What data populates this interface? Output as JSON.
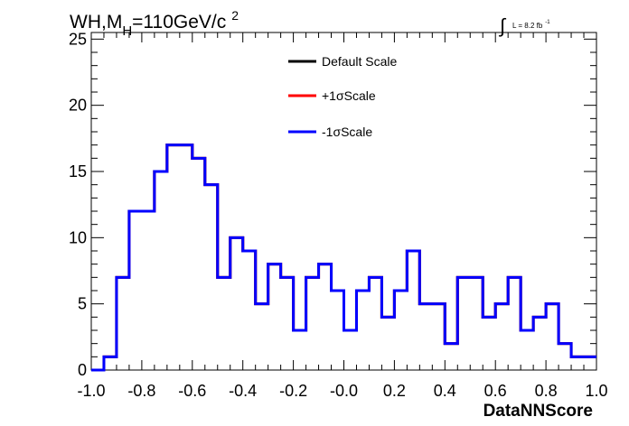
{
  "chart_data": {
    "type": "line",
    "drawstyle": "step",
    "title": {
      "prefix": "WH,M",
      "subscript": "H",
      "main": "=110GeV/c",
      "superscript": "2"
    },
    "lumi": {
      "integral": "∫",
      "text": "L = 8.2 fb",
      "superscript": "-1"
    },
    "xlabel": "DataNNScore",
    "ylabel": "",
    "xlim": [
      -1.0,
      1.0
    ],
    "ylim": [
      0,
      25.5
    ],
    "x_ticks": [
      "-1.0",
      "-0.8",
      "-0.6",
      "-0.4",
      "-0.2",
      "-0.0",
      "0.2",
      "0.4",
      "0.6",
      "0.8",
      "1.0"
    ],
    "y_ticks": [
      "0",
      "5",
      "10",
      "15",
      "20",
      "25"
    ],
    "grid": false,
    "legend_position": "top-center",
    "bin_edges_start": -1.0,
    "bin_width": 0.05,
    "series": [
      {
        "name": "Default Scale",
        "color": "#000000",
        "values": [
          0,
          1,
          7,
          12,
          12,
          15,
          17,
          17,
          16,
          14,
          7,
          10,
          9,
          5,
          8,
          7,
          3,
          7,
          8,
          6,
          3,
          6,
          7,
          4,
          6,
          9,
          5,
          5,
          2,
          7,
          7,
          4,
          5,
          7,
          3,
          4,
          5,
          2,
          1,
          1
        ]
      },
      {
        "name": "+1σScale",
        "color": "#ff0000",
        "values": [
          0,
          1,
          7,
          12,
          12,
          15,
          17,
          17,
          16,
          14,
          7,
          10,
          9,
          5,
          8,
          7,
          3,
          7,
          8,
          6,
          3,
          6,
          7,
          4,
          6,
          9,
          5,
          5,
          2,
          7,
          7,
          4,
          5,
          7,
          3,
          4,
          5,
          2,
          1,
          1
        ]
      },
      {
        "name": "-1σScale",
        "color": "#0000ff",
        "values": [
          0,
          1,
          7,
          12,
          12,
          15,
          17,
          17,
          16,
          14,
          7,
          10,
          9,
          5,
          8,
          7,
          3,
          7,
          8,
          6,
          3,
          6,
          7,
          4,
          6,
          9,
          5,
          5,
          2,
          7,
          7,
          4,
          5,
          7,
          3,
          4,
          5,
          2,
          1,
          1
        ]
      }
    ]
  }
}
